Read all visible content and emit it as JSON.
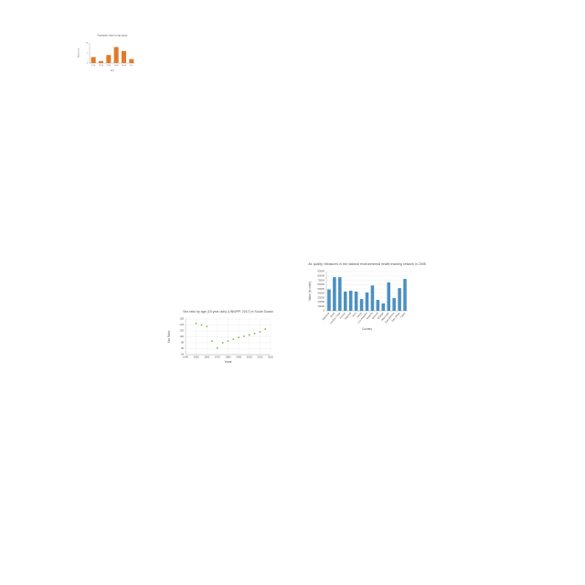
{
  "chart_data": [
    {
      "type": "bar",
      "title": "Population share by age group",
      "x_label": "Age",
      "y_label": "Share (%)",
      "categories": [
        "0-14",
        "15-24",
        "25-34",
        "35-44",
        "45-54",
        "55+"
      ],
      "values": [
        3,
        1,
        4,
        8,
        6,
        2
      ],
      "color": "#e07b2a",
      "ylim": [
        0,
        10
      ],
      "yticks": [
        0,
        5,
        10
      ],
      "grid": false
    },
    {
      "type": "scatter",
      "title": "Sex ratio by age (15 year olds) (UNWPP, 2017) in South Sudan",
      "x_label": "Years",
      "y_label": "Sex Ratio",
      "x": [
        1950,
        1955,
        1960,
        1965,
        1970,
        1975,
        1980,
        1985,
        1990,
        1995,
        2000,
        2005,
        2010,
        2015
      ],
      "values": [
        104.5,
        104,
        103.5,
        98.6,
        96.2,
        98,
        98.6,
        99.2,
        99.8,
        100.2,
        100.6,
        101.1,
        101.7,
        102.6
      ],
      "color": "#7cb342",
      "xlim": [
        1940,
        2020
      ],
      "xticks": [
        1940,
        1950,
        1960,
        1970,
        1980,
        1990,
        2000,
        2010,
        2020
      ],
      "ylim": [
        94,
        106
      ],
      "yticks": [
        94,
        96,
        98,
        100,
        102,
        104,
        106
      ],
      "grid": true
    },
    {
      "type": "bar",
      "title": "Air quality: Measures in the national environmental health tracking network in 2008",
      "x_label": "Country",
      "y_label": "Value (in units)",
      "categories": [
        "Alameda",
        "Butte",
        "Contra Costa",
        "Fresno",
        "Imperial",
        "Kern",
        "Kings",
        "Los Angeles",
        "Madera",
        "Merced",
        "Orange",
        "Riverside",
        "Sacramento",
        "San Diego",
        "Tulare"
      ],
      "values": [
        49000,
        77000,
        77000,
        44000,
        46000,
        44000,
        27000,
        42000,
        58000,
        25000,
        17000,
        65000,
        29000,
        52000,
        73000
      ],
      "color": "#4a90c2",
      "ylim": [
        0,
        90000
      ],
      "yticks": [
        0,
        10000,
        20000,
        30000,
        40000,
        50000,
        60000,
        70000,
        80000,
        90000
      ],
      "grid": true
    }
  ]
}
